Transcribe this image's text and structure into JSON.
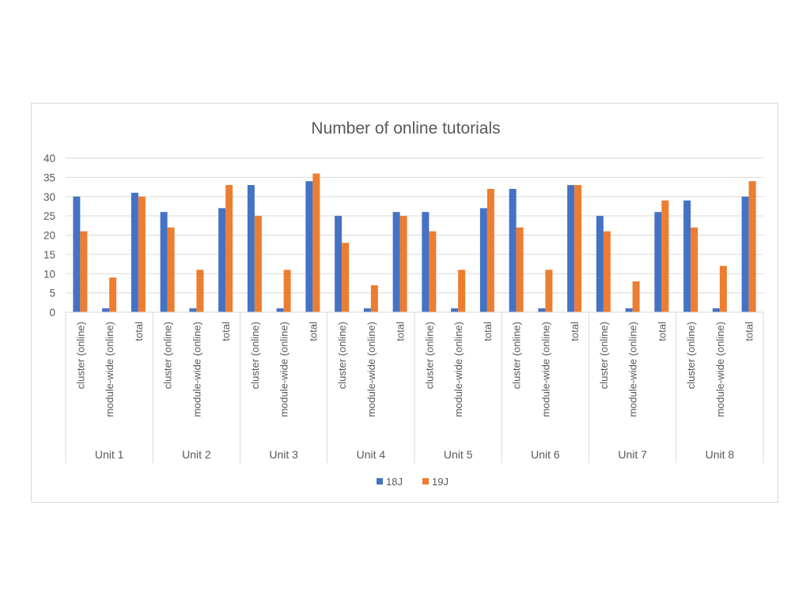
{
  "chart_data": {
    "type": "bar",
    "title": "Number of online tutorials",
    "xlabel": "",
    "ylabel": "",
    "ylim": [
      0,
      40
    ],
    "yticks": [
      0,
      5,
      10,
      15,
      20,
      25,
      30,
      35,
      40
    ],
    "grid": true,
    "legend_position": "bottom",
    "groups": [
      "Unit 1",
      "Unit 2",
      "Unit 3",
      "Unit 4",
      "Unit 5",
      "Unit 6",
      "Unit 7",
      "Unit 8"
    ],
    "subcategories": [
      "cluster (online)",
      "module-wide (online)",
      "total"
    ],
    "series": [
      {
        "name": "18J",
        "color": "#4472c4",
        "values": [
          [
            30,
            1,
            31
          ],
          [
            26,
            1,
            27
          ],
          [
            33,
            1,
            34
          ],
          [
            25,
            1,
            26
          ],
          [
            26,
            1,
            27
          ],
          [
            32,
            1,
            33
          ],
          [
            25,
            1,
            26
          ],
          [
            29,
            1,
            30
          ]
        ]
      },
      {
        "name": "19J",
        "color": "#ed7d31",
        "values": [
          [
            21,
            9,
            30
          ],
          [
            22,
            11,
            33
          ],
          [
            25,
            11,
            36
          ],
          [
            18,
            7,
            25
          ],
          [
            21,
            11,
            32
          ],
          [
            22,
            11,
            33
          ],
          [
            21,
            8,
            29
          ],
          [
            22,
            12,
            34
          ]
        ]
      }
    ]
  },
  "colors": {
    "gridline": "#d9d9d9",
    "axis": "#d9d9d9",
    "text": "#595959"
  }
}
